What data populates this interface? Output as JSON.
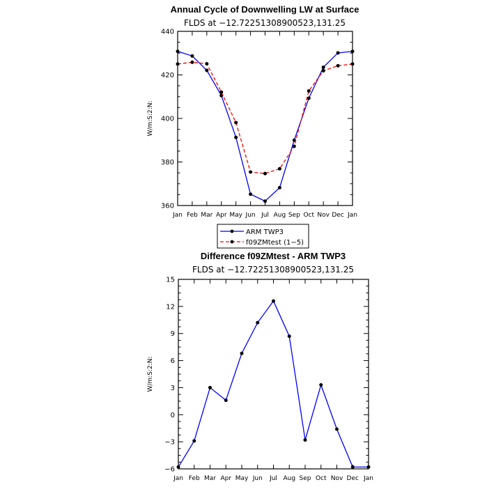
{
  "chart_data": [
    {
      "type": "line",
      "title": "Annual Cycle of Downwelling LW at Surface",
      "subtitle": "FLDS at −12.72251308900523,131.25",
      "ylabel": "W/m:S:2:N:",
      "xlabel": "",
      "categories": [
        "Jan",
        "Feb",
        "Mar",
        "Apr",
        "May",
        "Jun",
        "Jul",
        "Aug",
        "Sep",
        "Oct",
        "Nov",
        "Dec",
        "Jan"
      ],
      "ylim": [
        360,
        440
      ],
      "yticks": [
        360,
        380,
        400,
        420,
        440
      ],
      "grid": false,
      "legend": "below",
      "series": [
        {
          "name": "ARM TWP3",
          "color": "#0000ff",
          "dash": "solid",
          "values": [
            430.8,
            428.7,
            422.1,
            410.5,
            391.3,
            365.2,
            362.0,
            368.2,
            390.0,
            409.3,
            423.5,
            430.1,
            430.8
          ]
        },
        {
          "name": "f09ZMtest (1−5)",
          "color": "#ff0000",
          "dash": "dashed",
          "values": [
            425.0,
            425.8,
            425.1,
            412.1,
            398.1,
            375.4,
            374.7,
            376.9,
            387.2,
            412.6,
            421.9,
            424.2,
            425.0
          ]
        }
      ]
    },
    {
      "type": "line",
      "title": "Difference f09ZMtest - ARM TWP3",
      "subtitle": "FLDS at −12.72251308900523,131.25",
      "ylabel": "W/m:S:2:N:",
      "xlabel": "",
      "categories": [
        "Jan",
        "Feb",
        "Mar",
        "Apr",
        "May",
        "Jun",
        "Jul",
        "Aug",
        "Sep",
        "Oct",
        "Nov",
        "Dec",
        "Jan"
      ],
      "ytick_labels": [
        "−6",
        "−3",
        "0",
        "3",
        "6",
        "9",
        "12",
        "15"
      ],
      "ylim": [
        -6,
        15
      ],
      "yticks": [
        -6,
        -3,
        0,
        3,
        6,
        9,
        12,
        15
      ],
      "grid": false,
      "series": [
        {
          "color": "#0000ff",
          "dash": "solid",
          "values": [
            -5.8,
            -2.9,
            3.0,
            1.6,
            6.8,
            10.2,
            12.6,
            8.7,
            -2.8,
            3.3,
            -1.6,
            -5.8,
            -5.8
          ]
        }
      ]
    }
  ]
}
